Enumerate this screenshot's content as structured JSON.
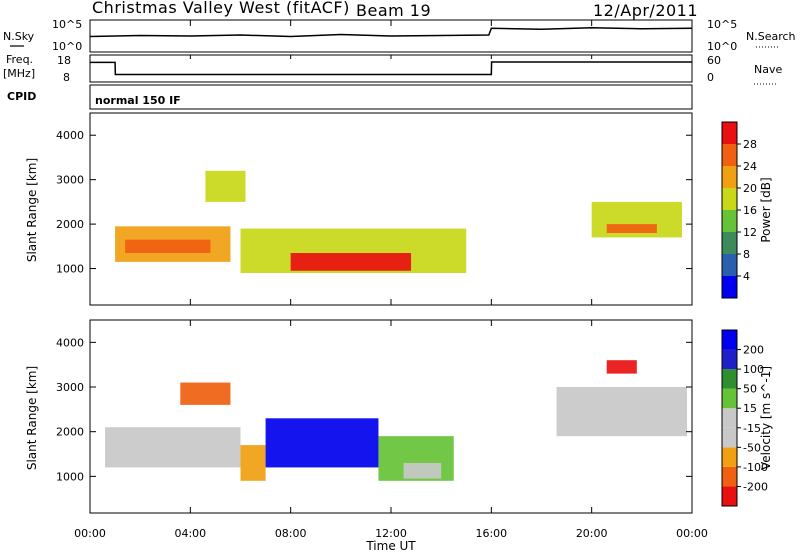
{
  "header": {
    "station": "Christmas Valley West (fitACF)",
    "beam": "Beam 19",
    "date": "12/Apr/2011"
  },
  "noise_panel": {
    "left_label": "N.Sky",
    "left_ticks": [
      "10^5",
      "10^0"
    ],
    "right_ticks": [
      "10^5",
      "10^0"
    ],
    "right_label": "N.Search"
  },
  "freq_panel": {
    "left_label_line1": "Freq.",
    "left_label_line2": "[MHz]",
    "left_ticks": [
      "18",
      "8"
    ],
    "right_ticks": [
      "60",
      "0"
    ],
    "right_label": "Nave"
  },
  "cpid_panel": {
    "label": "CPID",
    "text": "normal 150 IF"
  },
  "power_panel": {
    "ylabel": "Slant Range [km]",
    "yticks": [
      "4000",
      "3000",
      "2000",
      "1000"
    ],
    "colorbar_label": "Power [dB]",
    "colorbar_ticks": [
      "28",
      "24",
      "20",
      "16",
      "12",
      "8",
      "4"
    ]
  },
  "velocity_panel": {
    "ylabel": "Slant Range [km]",
    "yticks": [
      "4000",
      "3000",
      "2000",
      "1000"
    ],
    "colorbar_label": "Velocity [m s^-1]",
    "colorbar_ticks": [
      "200",
      "100",
      "50",
      "15",
      "-15",
      "-50",
      "-100",
      "-200"
    ]
  },
  "xaxis": {
    "ticks": [
      "00:00",
      "04:00",
      "08:00",
      "12:00",
      "16:00",
      "20:00",
      "00:00"
    ],
    "label": "Time UT"
  },
  "colors": {
    "power_scale": [
      "#0000ee",
      "#2a5fb0",
      "#3f8a5a",
      "#66c236",
      "#c8d818",
      "#f0a010",
      "#f06010",
      "#e81010"
    ],
    "velocity_scale": [
      "#e81010",
      "#f06010",
      "#f0a010",
      "#c8c8c8",
      "#c8c8c8",
      "#66c236",
      "#2f8f2f",
      "#2020c8",
      "#0000ee"
    ]
  },
  "chart_data": [
    {
      "type": "line",
      "panel": "noise",
      "x_unit": "hours UT",
      "xlim": [
        0,
        24
      ],
      "series": [
        {
          "x": [
            0,
            2,
            4,
            6,
            8,
            10,
            12,
            14,
            15.9,
            16,
            18,
            20,
            22,
            24
          ],
          "y": [
            2.2,
            2.4,
            2.3,
            2.5,
            2.2,
            2.6,
            2.3,
            2.4,
            2.5,
            3.8,
            3.6,
            3.9,
            3.7,
            3.8
          ]
        }
      ]
    },
    {
      "type": "line",
      "panel": "frequency",
      "x_unit": "hours UT",
      "xlim": [
        0,
        24
      ],
      "ylim": [
        8,
        18
      ],
      "series": [
        {
          "x": [
            0,
            1,
            1.01,
            16,
            16.01,
            24
          ],
          "y": [
            16,
            16,
            10.5,
            10.5,
            16.2,
            16.2
          ]
        }
      ]
    },
    {
      "type": "heatmap",
      "panel": "power",
      "x_unit": "hours UT",
      "y_unit": "km",
      "xlim": [
        0,
        24
      ],
      "ylim": [
        180,
        4500
      ],
      "zlim": [
        0,
        30
      ],
      "bands": [
        {
          "x0": 1.0,
          "x1": 5.6,
          "y0": 1150,
          "y1": 1950,
          "z": 20
        },
        {
          "x0": 1.4,
          "x1": 4.8,
          "y0": 1350,
          "y1": 1650,
          "z": 26
        },
        {
          "x0": 6.0,
          "x1": 15.0,
          "y0": 900,
          "y1": 1900,
          "z": 18
        },
        {
          "x0": 8.0,
          "x1": 12.8,
          "y0": 950,
          "y1": 1350,
          "z": 27
        },
        {
          "x0": 4.6,
          "x1": 6.2,
          "y0": 2500,
          "y1": 3200,
          "z": 16
        },
        {
          "x0": 20.0,
          "x1": 23.6,
          "y0": 1700,
          "y1": 2500,
          "z": 15
        },
        {
          "x0": 20.6,
          "x1": 22.6,
          "y0": 1800,
          "y1": 2000,
          "z": 24
        }
      ]
    },
    {
      "type": "heatmap",
      "panel": "velocity",
      "x_unit": "hours UT",
      "y_unit": "km",
      "xlim": [
        0,
        24
      ],
      "ylim": [
        180,
        4500
      ],
      "zlim": [
        -250,
        250
      ],
      "bands": [
        {
          "x0": 0.6,
          "x1": 6.0,
          "y0": 1200,
          "y1": 2100,
          "z": 0
        },
        {
          "x0": 3.6,
          "x1": 5.6,
          "y0": 2600,
          "y1": 3100,
          "z": -180
        },
        {
          "x0": 6.0,
          "x1": 7.0,
          "y0": 900,
          "y1": 1700,
          "z": -120
        },
        {
          "x0": 7.0,
          "x1": 11.5,
          "y0": 1200,
          "y1": 2300,
          "z": 220
        },
        {
          "x0": 11.5,
          "x1": 14.5,
          "y0": 900,
          "y1": 1900,
          "z": 60
        },
        {
          "x0": 12.5,
          "x1": 14.0,
          "y0": 950,
          "y1": 1300,
          "z": -80
        },
        {
          "x0": 18.6,
          "x1": 23.8,
          "y0": 1900,
          "y1": 3000,
          "z": 0
        },
        {
          "x0": 20.6,
          "x1": 21.8,
          "y0": 3300,
          "y1": 3600,
          "z": -200
        }
      ]
    }
  ]
}
